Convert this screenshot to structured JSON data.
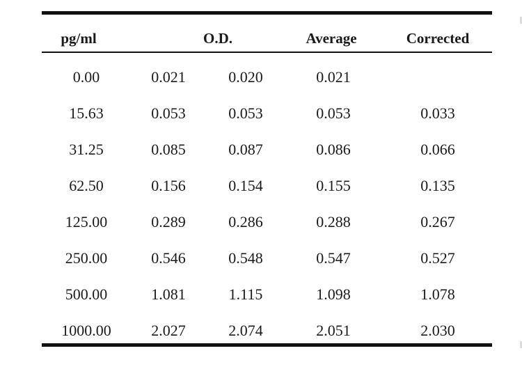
{
  "table": {
    "headers": {
      "concentration": "pg/ml",
      "od": "O.D.",
      "average": "Average",
      "corrected": "Corrected"
    },
    "rows": [
      {
        "concentration": "0.00",
        "od1": "0.021",
        "od2": "0.020",
        "average": "0.021",
        "corrected": ""
      },
      {
        "concentration": "15.63",
        "od1": "0.053",
        "od2": "0.053",
        "average": "0.053",
        "corrected": "0.033"
      },
      {
        "concentration": "31.25",
        "od1": "0.085",
        "od2": "0.087",
        "average": "0.086",
        "corrected": "0.066"
      },
      {
        "concentration": "62.50",
        "od1": "0.156",
        "od2": "0.154",
        "average": "0.155",
        "corrected": "0.135"
      },
      {
        "concentration": "125.00",
        "od1": "0.289",
        "od2": "0.286",
        "average": "0.288",
        "corrected": "0.267"
      },
      {
        "concentration": "250.00",
        "od1": "0.546",
        "od2": "0.548",
        "average": "0.547",
        "corrected": "0.527"
      },
      {
        "concentration": "500.00",
        "od1": "1.081",
        "od2": "1.115",
        "average": "1.098",
        "corrected": "1.078"
      },
      {
        "concentration": "1000.00",
        "od1": "2.027",
        "od2": "2.074",
        "average": "2.051",
        "corrected": "2.030"
      }
    ]
  }
}
